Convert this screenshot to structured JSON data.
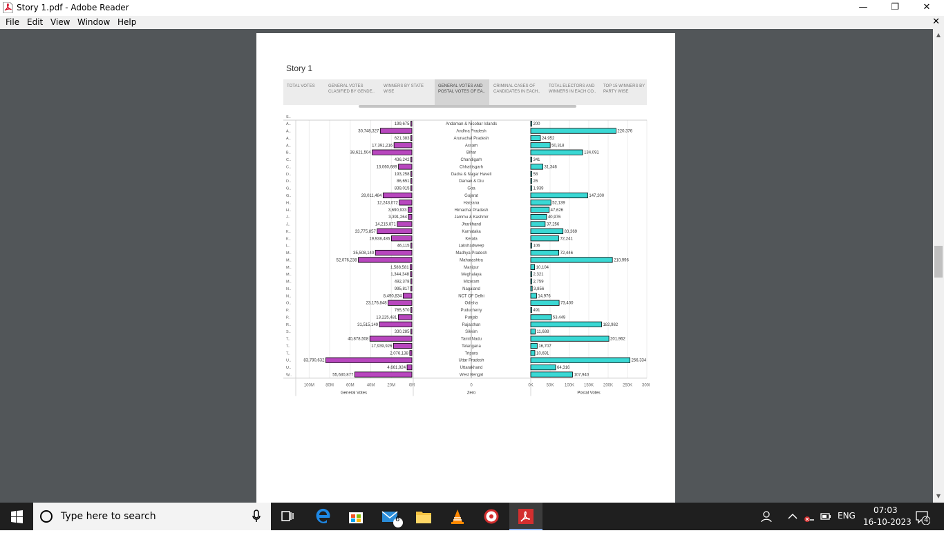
{
  "window": {
    "title": "Story 1.pdf - Adobe Reader",
    "minimize": "—",
    "restore": "❐",
    "close": "✕"
  },
  "menu": {
    "items": [
      "File",
      "Edit",
      "View",
      "Window",
      "Help"
    ],
    "doc_close": "✕"
  },
  "story": {
    "title": "Story 1",
    "tabs": [
      "TOTAL VOTES",
      "GENERAL VOTES CLASIFIED BY GENDE..",
      "WINNERS BY STATE WISE",
      "GENERAL VOTES AND POSTAL VOTES OF EA..",
      "CRIMINAL CASES OF CANDIDATES IN EACH..",
      "TOTAL ELECTORS AND WINNERS IN EACH CO..",
      "TOP 15 WINNERS BY PARTY WISE"
    ],
    "active_tab": 3
  },
  "chart_data": {
    "type": "bar",
    "row_header": "S..",
    "states": [
      "Andaman & Nicobar Islands",
      "Andhra Pradesh",
      "Arunachal Pradesh",
      "Assam",
      "Bihar",
      "Chandigarh",
      "Chhattisgarh",
      "Dadra & Nagar Haveli",
      "Daman & Diu",
      "Goa",
      "Gujarat",
      "Haryana",
      "Himachal Pradesh",
      "Jammu & Kashmir",
      "Jharkhand",
      "Karnataka",
      "Kerala",
      "Lakshadweep",
      "Madhya Pradesh",
      "Maharashtra",
      "Manipur",
      "Meghalaya",
      "Mizoram",
      "Nagaland",
      "NCT OF Delhi",
      "Odisha",
      "Puducherry",
      "Punjab",
      "Rajasthan",
      "Sikkim",
      "Tamil Nadu",
      "Telangana",
      "Tripura",
      "Uttar Pradesh",
      "Uttarakhand",
      "West Bengal"
    ],
    "abbrev": [
      "A..",
      "A..",
      "A..",
      "A..",
      "B..",
      "C..",
      "C..",
      "D..",
      "D..",
      "G..",
      "G..",
      "H..",
      "H..",
      "J..",
      "J..",
      "K..",
      "K..",
      "L..",
      "M..",
      "M..",
      "M..",
      "M..",
      "M..",
      "N..",
      "N..",
      "O..",
      "P..",
      "P..",
      "R..",
      "S..",
      "T..",
      "T..",
      "T..",
      "U..",
      "U..",
      "W.."
    ],
    "general_votes": [
      199675,
      30748327,
      621383,
      17391216,
      38621504,
      436242,
      13060689,
      193258,
      86651,
      839015,
      28011484,
      12243072,
      3690933,
      3391264,
      14215871,
      33775857,
      19938486,
      46115,
      35508140,
      52076238,
      1588581,
      1344348,
      492378,
      995817,
      8490834,
      23176848,
      765570,
      13225481,
      31515149,
      330285,
      40878508,
      17939926,
      2076138,
      83790632,
      4661924,
      55630877
    ],
    "general_labels": [
      "199,675",
      "30,748,327",
      "621,383",
      "17,391,216",
      "38,621,504",
      "436,242",
      "13,060,689",
      "193,258",
      "86,651",
      "839,015",
      "28,011,484",
      "12,243,072",
      "3,690,933",
      "3,391,264",
      "14,215,871",
      "33,775,857",
      "19,938,486",
      "46,115",
      "35,508,140",
      "52,076,238",
      "1,588,581",
      "1,344,348",
      "492,378",
      "995,817",
      "8,490,834",
      "23,176,848",
      "765,570",
      "13,225,481",
      "31,515,149",
      "330,285",
      "40,878,508",
      "17,939,926",
      "2,076,138",
      "83,790,632",
      "4,661,924",
      "55,630,877"
    ],
    "postal_votes": [
      200,
      220376,
      24952,
      50318,
      134091,
      341,
      31346,
      58,
      26,
      1939,
      147200,
      52139,
      47626,
      40976,
      37256,
      83369,
      72241,
      106,
      72446,
      210996,
      10104,
      2321,
      2759,
      3856,
      14976,
      73400,
      491,
      53449,
      182982,
      11688,
      201962,
      16707,
      10691,
      256334,
      64316,
      107940
    ],
    "postal_labels": [
      "200",
      "220,376",
      "24,952",
      "50,318",
      "134,091",
      "341",
      "31,346",
      "58",
      "26",
      "1,939",
      "147,200",
      "52,139",
      "47,626",
      "40,976",
      "37,256",
      "83,369",
      "72,241",
      "106",
      "72,446",
      "210,996",
      "10,104",
      "2,321",
      "2,759",
      "3,856",
      "14,976",
      "73,400",
      "491",
      "53,449",
      "182,982",
      "11,688",
      "201,962",
      "16,707",
      "10,691",
      "256,334",
      "64,316",
      "107,940"
    ],
    "general_ticks": [
      "100M",
      "80M",
      "60M",
      "40M",
      "20M",
      "0M"
    ],
    "general_max": 113000000,
    "middle_tick": "0",
    "postal_ticks": [
      "0K",
      "50K",
      "100K",
      "150K",
      "200K",
      "250K",
      "300K"
    ],
    "postal_max": 300000,
    "xlabel_left": "General Votes",
    "xlabel_middle": "Zero",
    "xlabel_right": "Postal Votes",
    "colors": {
      "general": "#b847be",
      "postal": "#3ad8d4",
      "outline": "#000000"
    }
  },
  "taskbar": {
    "search_placeholder": "Type here to search",
    "mail_badge": "6",
    "language": "ENG",
    "time": "07:03",
    "date": "16-10-2023",
    "notification_badge": "4"
  }
}
